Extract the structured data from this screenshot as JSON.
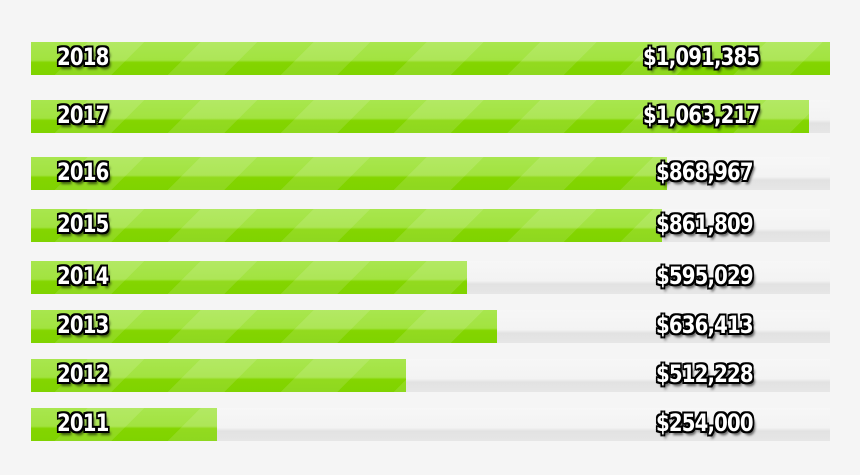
{
  "chart_data": {
    "type": "bar",
    "orientation": "horizontal",
    "categories": [
      "2018",
      "2017",
      "2016",
      "2015",
      "2014",
      "2013",
      "2012",
      "2011"
    ],
    "values": [
      1091385,
      1063217,
      868967,
      861809,
      595029,
      636413,
      512228,
      254000
    ],
    "value_labels": [
      "$1,091,385",
      "$1,063,217",
      "$868,967",
      "$861,809",
      "$595,029",
      "$636,413",
      "$512,228",
      "$254,000"
    ],
    "colors": {
      "bar": "#8fdc1a",
      "track": "#eeeeee",
      "background": "#f5f5f5"
    },
    "grid": false
  }
}
